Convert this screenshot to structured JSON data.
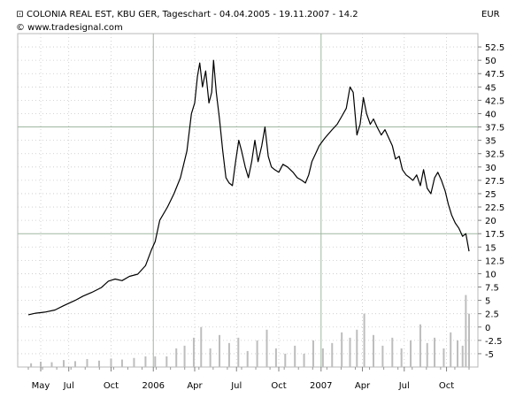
{
  "header": {
    "title": "COLONIA REAL EST, KBU GER, Tageschart - 04.04.2005 - 19.11.2007 - 14.2",
    "source": "© www.tradesignal.com",
    "currency": "EUR",
    "icon": "candlestick-icon"
  },
  "chart_data": {
    "type": "line",
    "title": "COLONIA REAL EST, KBU GER, Tageschart - 04.04.2005 - 19.11.2007 - 14.2",
    "xlabel": "",
    "ylabel": "EUR",
    "x_range": [
      "2005-04-04",
      "2007-11-19"
    ],
    "ylim": [
      -7.5,
      55
    ],
    "y_ticks": [
      "52.5",
      "50",
      "47.5",
      "45",
      "42.5",
      "40",
      "37.5",
      "35",
      "32.5",
      "30",
      "27.5",
      "25",
      "22.5",
      "20",
      "17.5",
      "15",
      "12.5",
      "10",
      "7.5",
      "5",
      "2.5",
      "0",
      "-2.5",
      "-5"
    ],
    "x_ticks": [
      {
        "date": "2005-05-01",
        "label": "May"
      },
      {
        "date": "2005-07-01",
        "label": "Jul"
      },
      {
        "date": "2005-10-01",
        "label": "Oct"
      },
      {
        "date": "2006-01-01",
        "label": "2006"
      },
      {
        "date": "2006-04-01",
        "label": "Apr"
      },
      {
        "date": "2006-07-01",
        "label": "Jul"
      },
      {
        "date": "2006-10-01",
        "label": "Oct"
      },
      {
        "date": "2007-01-01",
        "label": "2007"
      },
      {
        "date": "2007-04-01",
        "label": "Apr"
      },
      {
        "date": "2007-07-01",
        "label": "Jul"
      },
      {
        "date": "2007-10-01",
        "label": "Oct"
      }
    ],
    "grid": true,
    "series": [
      {
        "style": "line",
        "color": "#000000",
        "points": [
          [
            "2005-04-04",
            2.3
          ],
          [
            "2005-04-20",
            2.6
          ],
          [
            "2005-05-10",
            2.8
          ],
          [
            "2005-06-01",
            3.2
          ],
          [
            "2005-06-20",
            4.0
          ],
          [
            "2005-07-15",
            5.0
          ],
          [
            "2005-08-01",
            5.8
          ],
          [
            "2005-08-20",
            6.5
          ],
          [
            "2005-09-10",
            7.4
          ],
          [
            "2005-09-25",
            8.6
          ],
          [
            "2005-10-10",
            9.0
          ],
          [
            "2005-10-25",
            8.7
          ],
          [
            "2005-11-10",
            9.5
          ],
          [
            "2005-11-28",
            9.9
          ],
          [
            "2005-12-15",
            11.5
          ],
          [
            "2005-12-28",
            14.5
          ],
          [
            "2006-01-05",
            16.0
          ],
          [
            "2006-01-15",
            20.0
          ],
          [
            "2006-02-01",
            22.5
          ],
          [
            "2006-02-15",
            25.0
          ],
          [
            "2006-03-01",
            28.0
          ],
          [
            "2006-03-15",
            33.0
          ],
          [
            "2006-03-25",
            40.0
          ],
          [
            "2006-04-01",
            42.0
          ],
          [
            "2006-04-07",
            47.0
          ],
          [
            "2006-04-12",
            49.5
          ],
          [
            "2006-04-18",
            45.0
          ],
          [
            "2006-04-25",
            48.0
          ],
          [
            "2006-05-02",
            42.0
          ],
          [
            "2006-05-08",
            44.0
          ],
          [
            "2006-05-12",
            50.0
          ],
          [
            "2006-05-18",
            44.0
          ],
          [
            "2006-05-25",
            39.0
          ],
          [
            "2006-06-01",
            33.0
          ],
          [
            "2006-06-08",
            28.0
          ],
          [
            "2006-06-15",
            27.0
          ],
          [
            "2006-06-22",
            26.5
          ],
          [
            "2006-06-29",
            31.0
          ],
          [
            "2006-07-06",
            35.0
          ],
          [
            "2006-07-12",
            33.0
          ],
          [
            "2006-07-20",
            30.0
          ],
          [
            "2006-07-27",
            28.0
          ],
          [
            "2006-08-03",
            31.0
          ],
          [
            "2006-08-10",
            35.0
          ],
          [
            "2006-08-17",
            31.0
          ],
          [
            "2006-08-25",
            34.0
          ],
          [
            "2006-09-01",
            37.5
          ],
          [
            "2006-09-08",
            32.0
          ],
          [
            "2006-09-15",
            30.0
          ],
          [
            "2006-09-22",
            29.5
          ],
          [
            "2006-10-01",
            29.0
          ],
          [
            "2006-10-10",
            30.5
          ],
          [
            "2006-10-20",
            30.0
          ],
          [
            "2006-11-01",
            29.0
          ],
          [
            "2006-11-10",
            28.0
          ],
          [
            "2006-11-20",
            27.5
          ],
          [
            "2006-11-28",
            27.0
          ],
          [
            "2006-12-05",
            28.5
          ],
          [
            "2006-12-12",
            31.0
          ],
          [
            "2006-12-20",
            32.5
          ],
          [
            "2006-12-28",
            34.0
          ],
          [
            "2007-01-10",
            35.5
          ],
          [
            "2007-01-25",
            37.0
          ],
          [
            "2007-02-05",
            38.0
          ],
          [
            "2007-02-15",
            39.5
          ],
          [
            "2007-02-25",
            41.0
          ],
          [
            "2007-03-05",
            45.0
          ],
          [
            "2007-03-12",
            44.0
          ],
          [
            "2007-03-20",
            36.0
          ],
          [
            "2007-03-27",
            38.0
          ],
          [
            "2007-04-03",
            43.0
          ],
          [
            "2007-04-10",
            40.0
          ],
          [
            "2007-04-18",
            38.0
          ],
          [
            "2007-04-25",
            39.0
          ],
          [
            "2007-05-03",
            37.5
          ],
          [
            "2007-05-12",
            36.0
          ],
          [
            "2007-05-20",
            37.0
          ],
          [
            "2007-05-28",
            35.5
          ],
          [
            "2007-06-05",
            34.0
          ],
          [
            "2007-06-12",
            31.5
          ],
          [
            "2007-06-20",
            32.0
          ],
          [
            "2007-06-27",
            29.5
          ],
          [
            "2007-07-05",
            28.5
          ],
          [
            "2007-07-13",
            28.0
          ],
          [
            "2007-07-20",
            27.5
          ],
          [
            "2007-07-28",
            28.5
          ],
          [
            "2007-08-05",
            26.5
          ],
          [
            "2007-08-12",
            29.5
          ],
          [
            "2007-08-20",
            26.0
          ],
          [
            "2007-08-28",
            25.0
          ],
          [
            "2007-09-05",
            28.0
          ],
          [
            "2007-09-12",
            29.0
          ],
          [
            "2007-09-20",
            27.5
          ],
          [
            "2007-09-28",
            25.5
          ],
          [
            "2007-10-05",
            23.0
          ],
          [
            "2007-10-12",
            21.0
          ],
          [
            "2007-10-20",
            19.5
          ],
          [
            "2007-10-28",
            18.5
          ],
          [
            "2007-11-05",
            17.0
          ],
          [
            "2007-11-12",
            17.5
          ],
          [
            "2007-11-19",
            14.2
          ]
        ]
      },
      {
        "style": "volume-bars",
        "color": "#bdbdbd",
        "base": -7.5,
        "points": [
          [
            "2005-04-10",
            -6.8
          ],
          [
            "2005-05-01",
            -6.5
          ],
          [
            "2005-05-25",
            -6.6
          ],
          [
            "2005-06-20",
            -6.2
          ],
          [
            "2005-07-15",
            -6.4
          ],
          [
            "2005-08-10",
            -6.0
          ],
          [
            "2005-09-05",
            -6.3
          ],
          [
            "2005-10-01",
            -5.9
          ],
          [
            "2005-10-25",
            -6.1
          ],
          [
            "2005-11-20",
            -5.8
          ],
          [
            "2005-12-15",
            -5.5
          ],
          [
            "2006-01-05",
            -5.5
          ],
          [
            "2006-01-30",
            -5.5
          ],
          [
            "2006-02-20",
            -4.0
          ],
          [
            "2006-03-10",
            -3.5
          ],
          [
            "2006-03-30",
            -2.0
          ],
          [
            "2006-04-15",
            0.0
          ],
          [
            "2006-05-05",
            -4.0
          ],
          [
            "2006-05-25",
            -1.5
          ],
          [
            "2006-06-15",
            -3.0
          ],
          [
            "2006-07-05",
            -2.0
          ],
          [
            "2006-07-25",
            -4.5
          ],
          [
            "2006-08-15",
            -2.5
          ],
          [
            "2006-09-05",
            -0.5
          ],
          [
            "2006-09-25",
            -4.0
          ],
          [
            "2006-10-15",
            -5.0
          ],
          [
            "2006-11-05",
            -3.5
          ],
          [
            "2006-11-25",
            -5.0
          ],
          [
            "2006-12-15",
            -2.5
          ],
          [
            "2007-01-05",
            -4.0
          ],
          [
            "2007-01-25",
            -3.0
          ],
          [
            "2007-02-15",
            -1.0
          ],
          [
            "2007-03-05",
            -2.0
          ],
          [
            "2007-03-20",
            -0.5
          ],
          [
            "2007-04-05",
            2.5
          ],
          [
            "2007-04-25",
            -1.5
          ],
          [
            "2007-05-15",
            -3.5
          ],
          [
            "2007-06-05",
            -2.0
          ],
          [
            "2007-06-25",
            -4.0
          ],
          [
            "2007-07-15",
            -2.5
          ],
          [
            "2007-08-05",
            0.5
          ],
          [
            "2007-08-20",
            -3.0
          ],
          [
            "2007-09-05",
            -2.0
          ],
          [
            "2007-09-25",
            -4.0
          ],
          [
            "2007-10-10",
            -1.0
          ],
          [
            "2007-10-25",
            -2.5
          ],
          [
            "2007-11-05",
            -3.5
          ],
          [
            "2007-11-12",
            6.0
          ],
          [
            "2007-11-19",
            2.5
          ]
        ]
      }
    ]
  }
}
